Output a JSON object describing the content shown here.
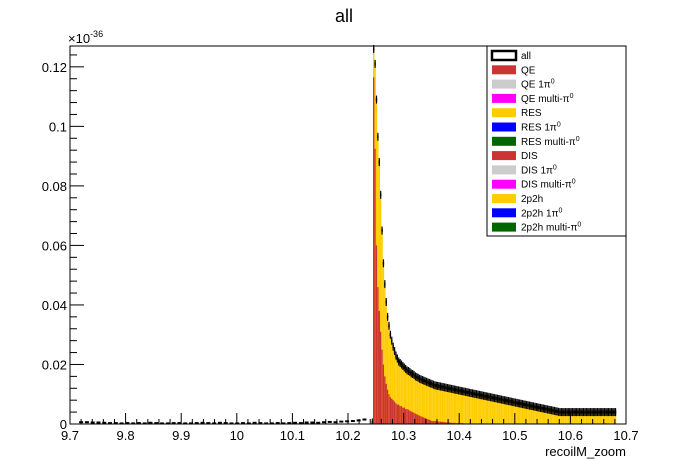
{
  "chart_data": {
    "type": "bar",
    "title": "all",
    "xlabel": "recoilM_zoom",
    "ylabel": "",
    "y_exponent_label": "×10",
    "y_exponent_power": "-36",
    "xlim": [
      9.7,
      10.7
    ],
    "ylim": [
      0,
      0.127
    ],
    "x_ticks": [
      "9.7",
      "9.8",
      "9.9",
      "10",
      "10.1",
      "10.2",
      "10.3",
      "10.4",
      "10.5",
      "10.6",
      "10.7"
    ],
    "y_ticks": [
      "0",
      "0.02",
      "0.04",
      "0.06",
      "0.08",
      "0.1",
      "0.12"
    ],
    "legend_position": "top-right",
    "legend": [
      {
        "label": "all",
        "sup": "",
        "color": "#ffffff",
        "style": "outline"
      },
      {
        "label": "QE",
        "sup": "",
        "color": "#cc3333",
        "style": "fill"
      },
      {
        "label": "QE 1π",
        "sup": "0",
        "color": "#cccccc",
        "style": "fill"
      },
      {
        "label": "QE multi-π",
        "sup": "0",
        "color": "#ff00ff",
        "style": "fill"
      },
      {
        "label": "RES",
        "sup": "",
        "color": "#ffcc00",
        "style": "fill"
      },
      {
        "label": "RES 1π",
        "sup": "0",
        "color": "#0000ff",
        "style": "fill"
      },
      {
        "label": "RES multi-π",
        "sup": "0",
        "color": "#006600",
        "style": "fill"
      },
      {
        "label": "DIS",
        "sup": "",
        "color": "#cc3333",
        "style": "fill"
      },
      {
        "label": "DIS 1π",
        "sup": "0",
        "color": "#cccccc",
        "style": "fill"
      },
      {
        "label": "DIS multi-π",
        "sup": "0",
        "color": "#ff00ff",
        "style": "fill"
      },
      {
        "label": "2p2h",
        "sup": "",
        "color": "#ffcc00",
        "style": "fill"
      },
      {
        "label": "2p2h 1π",
        "sup": "0",
        "color": "#0000ff",
        "style": "fill"
      },
      {
        "label": "2p2h multi-π",
        "sup": "0",
        "color": "#006600",
        "style": "fill"
      }
    ],
    "colors": {
      "qe": "#cc3333",
      "yellow": "#ffcc00",
      "total_line": "#000000"
    },
    "bin_width": 0.0025,
    "series": [
      {
        "name": "QE",
        "start": 10.2425,
        "values": [
          0.0,
          0.1165,
          0.0925,
          0.06,
          0.046,
          0.038,
          0.031,
          0.025,
          0.02,
          0.016,
          0.0135,
          0.0115,
          0.01,
          0.009,
          0.0085,
          0.008,
          0.0075,
          0.007,
          0.0065,
          0.0065,
          0.006,
          0.006,
          0.0055,
          0.0055,
          0.005,
          0.005,
          0.0048,
          0.0045,
          0.0042,
          0.004,
          0.0038,
          0.0035,
          0.0033,
          0.003,
          0.0028,
          0.0026,
          0.0024,
          0.0022,
          0.002,
          0.0018,
          0.0016,
          0.0014,
          0.0012,
          0.001,
          0.001,
          0.001,
          0.0009,
          0.0009,
          0.0008,
          0.0008,
          0.0007,
          0.0007,
          0.0006,
          0.0006,
          0.0005,
          0.0005,
          0.0005,
          0.0004,
          0.0004,
          0.0004,
          0.0003,
          0.0003,
          0.0003,
          0.0003,
          0.0003,
          0.0003,
          0.0002,
          0.0002,
          0.0002,
          0.0002,
          0.0002,
          0.0002,
          0.0002,
          0.0002,
          0.0002,
          0.0002,
          0.0002,
          0.0002,
          0.0002,
          0.0002,
          0.0002,
          0.0002,
          0.0002,
          0.0002,
          0.0002,
          0.0002,
          0.0002,
          0.0002,
          0.0002,
          0.0002,
          0.0002,
          0.0002,
          0.0002,
          0.0002,
          0.0002,
          0.0002,
          0.0002,
          0.0002,
          0.0002,
          0.0002,
          0.0002,
          0.0002,
          0.0002,
          0.0002,
          0.0002,
          0.0002,
          0.0002,
          0.0002,
          0.0002,
          0.0002,
          0.0002,
          0.0002,
          0.0002,
          0.0002,
          0.0002,
          0.0002,
          0.0002,
          0.0002,
          0.0002,
          0.0002,
          0.0002,
          0.0002,
          0.0002,
          0.0002,
          0.0002,
          0.0002,
          0.0002,
          0.0002,
          0.0002,
          0.0002,
          0.0002,
          0.0002,
          0.0002,
          0.0002,
          0.0002,
          0.0002,
          0.0002,
          0.0002,
          0.0002,
          0.0002,
          0.0002,
          0.0002,
          0.0002,
          0.0002,
          0.0002,
          0.0002,
          0.0002,
          0.0002,
          0.0002,
          0.0002,
          0.0002,
          0.0002,
          0.0002,
          0.0002,
          0.0002,
          0.0002,
          0.0002,
          0.0002,
          0.0002,
          0.0002,
          0.0002,
          0.0002,
          0.0002,
          0.0002,
          0.0002,
          0.0002,
          0.0002,
          0.0002,
          0.0002,
          0.0002,
          0.0002
        ]
      },
      {
        "name": "all",
        "start": 10.2425,
        "values": [
          0.0005,
          0.126,
          0.121,
          0.109,
          0.0965,
          0.088,
          0.077,
          0.065,
          0.054,
          0.047,
          0.041,
          0.036,
          0.033,
          0.03,
          0.028,
          0.026,
          0.0245,
          0.023,
          0.022,
          0.021,
          0.0205,
          0.02,
          0.0195,
          0.019,
          0.0185,
          0.018,
          0.0178,
          0.0175,
          0.017,
          0.0168,
          0.0165,
          0.016,
          0.0158,
          0.0155,
          0.0152,
          0.015,
          0.0148,
          0.0146,
          0.0144,
          0.0142,
          0.014,
          0.0138,
          0.0136,
          0.0134,
          0.0132,
          0.013,
          0.0129,
          0.0128,
          0.0127,
          0.0126,
          0.0125,
          0.0124,
          0.0123,
          0.0122,
          0.0121,
          0.012,
          0.0119,
          0.0118,
          0.0117,
          0.0116,
          0.0115,
          0.0114,
          0.0113,
          0.0112,
          0.0111,
          0.011,
          0.0109,
          0.0108,
          0.0107,
          0.0106,
          0.0105,
          0.0104,
          0.0103,
          0.0102,
          0.0101,
          0.01,
          0.0099,
          0.0098,
          0.0097,
          0.0096,
          0.0095,
          0.0094,
          0.0093,
          0.0092,
          0.0091,
          0.009,
          0.0089,
          0.0088,
          0.0087,
          0.0086,
          0.0085,
          0.0084,
          0.0083,
          0.0082,
          0.0081,
          0.008,
          0.0079,
          0.0078,
          0.0077,
          0.0076,
          0.0075,
          0.0074,
          0.0073,
          0.0072,
          0.0071,
          0.007,
          0.0069,
          0.0068,
          0.0067,
          0.0066,
          0.0065,
          0.0064,
          0.0063,
          0.0062,
          0.0061,
          0.006,
          0.0059,
          0.0058,
          0.0057,
          0.0056,
          0.0055,
          0.0054,
          0.0053,
          0.0052,
          0.0051,
          0.005,
          0.0049,
          0.0048,
          0.0047,
          0.0046,
          0.0045,
          0.0044,
          0.0043,
          0.0042,
          0.0041,
          0.004,
          0.004,
          0.004,
          0.004,
          0.004,
          0.004,
          0.004,
          0.004,
          0.004,
          0.004,
          0.004,
          0.004,
          0.004,
          0.004,
          0.004,
          0.004,
          0.004,
          0.004,
          0.004,
          0.004,
          0.004,
          0.004,
          0.004,
          0.004,
          0.004,
          0.004,
          0.004,
          0.004,
          0.004,
          0.004,
          0.004,
          0.004,
          0.004,
          0.004,
          0.004,
          0.004,
          0.004,
          0.004,
          0.004,
          0.004,
          0.004
        ]
      },
      {
        "name": "all-lowmass",
        "start": 9.72,
        "values": [
          0.0006,
          0.0006,
          0.0005,
          0.0005,
          0.0004,
          0.0003,
          0.0003,
          0.0002,
          0.0003,
          0.0002,
          0.0003,
          0.0002,
          0.0004,
          0.0003,
          0.0002,
          0.0002,
          0.0003,
          0.0003,
          0.0002,
          0.0002,
          0.0003,
          0.0004,
          0.0003,
          0.0002,
          0.0004,
          0.0003,
          0.0002,
          0.0002,
          0.0003,
          0.0002,
          0.0004,
          0.0003,
          0.0002,
          0.0002,
          0.0003,
          0.0002,
          0.0003,
          0.0004,
          0.0003,
          0.0005,
          0.0005,
          0.0004,
          0.0006,
          0.0007,
          0.0006,
          0.0008,
          0.0009,
          0.001,
          0.0012,
          0.0015
        ]
      }
    ]
  }
}
